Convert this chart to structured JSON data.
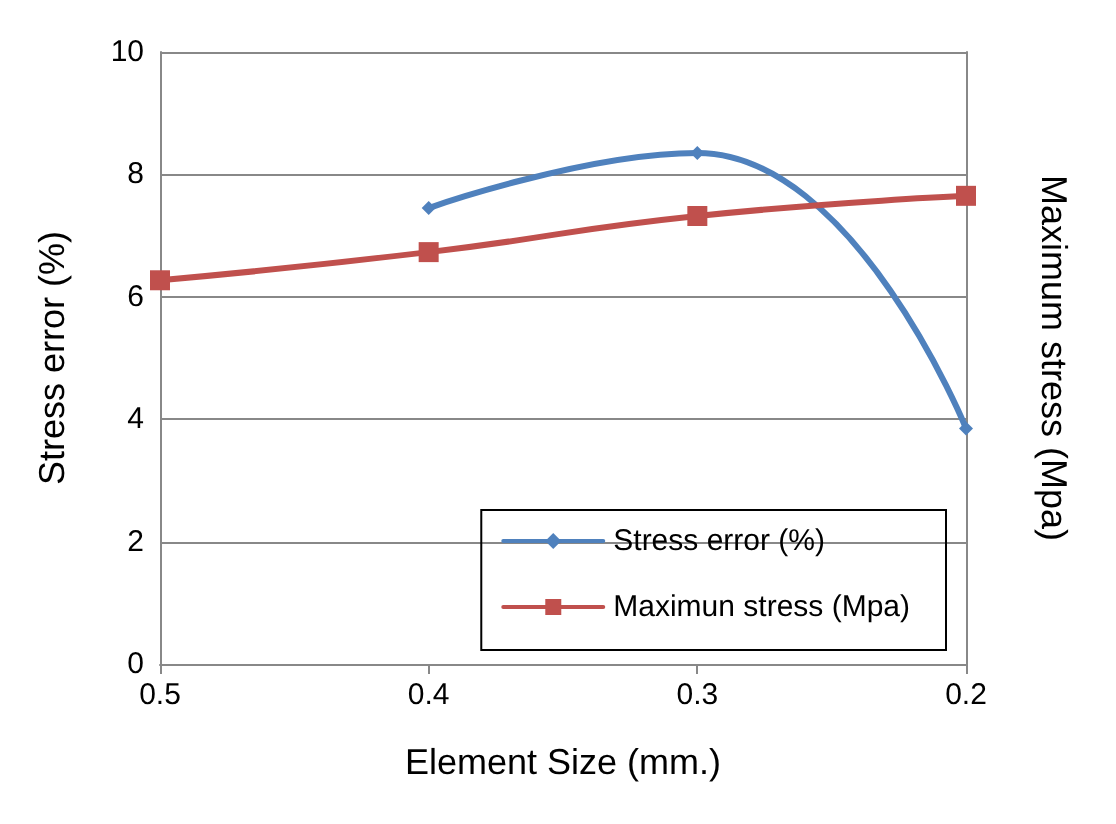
{
  "chart_data": {
    "type": "line",
    "xlabel": "Element Size (mm.)",
    "ylabel": "Stress error (%)",
    "y2label": "Maximum stress (Mpa)",
    "x": [
      0.5,
      0.4,
      0.3,
      0.2
    ],
    "series": [
      {
        "name": "Stress error (%)",
        "color": "#4f81bd",
        "marker": "diamond",
        "values": [
          null,
          7.45,
          8.35,
          3.85
        ]
      },
      {
        "name": "Maximun stress (Mpa)",
        "color": "#c0504d",
        "marker": "square",
        "values": [
          6.27,
          6.73,
          7.32,
          7.65
        ]
      }
    ],
    "xlim": [
      0.5,
      0.2
    ],
    "xticks": [
      0.5,
      0.4,
      0.3,
      0.2
    ],
    "ylim": [
      0,
      10
    ],
    "yticks": [
      0,
      2,
      4,
      6,
      8,
      10
    ],
    "grid": "y",
    "legend": "bottom right",
    "line_style": "solid"
  }
}
